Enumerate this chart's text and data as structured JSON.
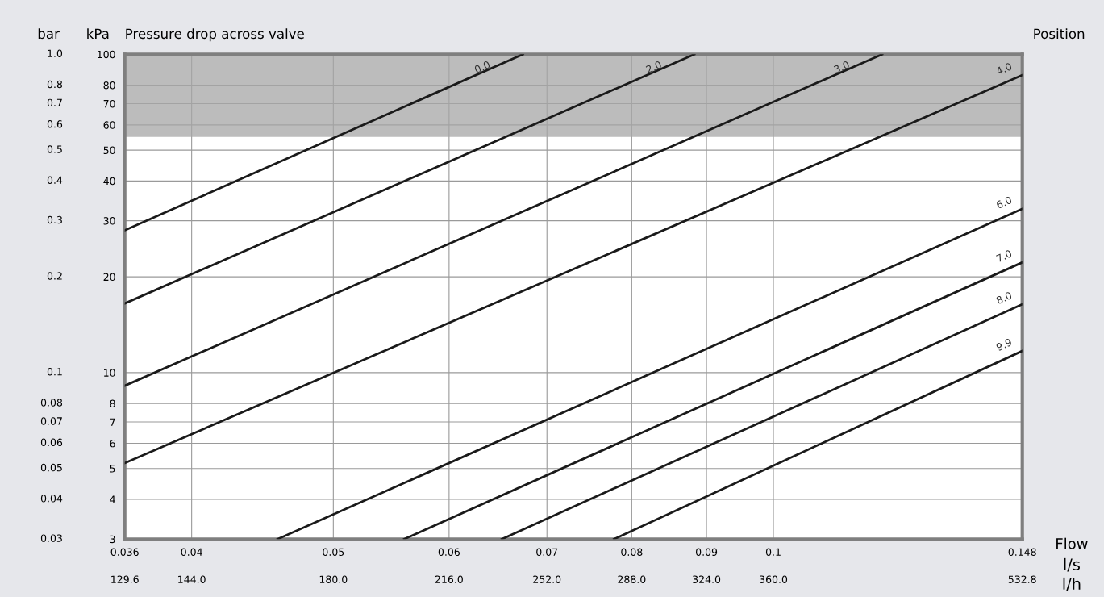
{
  "chart_data": {
    "type": "line",
    "title": "Pressure drop across valve",
    "ylabel": "kPa",
    "xlabel": "l/s",
    "legend_title": "Position",
    "annotations": [
      "Flow",
      "bar",
      "l/h",
      "129.6",
      "144.0",
      "180.0",
      "216.0",
      "252.0",
      "288.0",
      "324.0",
      "360.0",
      "532.8",
      "0.03",
      "0.04",
      "0.05",
      "0.06",
      "0.07",
      "0.08",
      "0.1",
      "0.2",
      "0.3",
      "0.4",
      "0.5",
      "0.6",
      "0.7",
      "0.8",
      "1.0"
    ],
    "log": "xy",
    "grid": true,
    "legend": false,
    "marker": "none",
    "line_style": "solid",
    "xlim": [
      0.036,
      0.148
    ],
    "xticks": [
      0.036,
      0.04,
      0.05,
      0.06,
      0.07,
      0.08,
      0.09,
      0.1,
      0.148
    ],
    "ylim": [
      3,
      100
    ],
    "yticks": [
      3,
      4,
      5,
      6,
      7,
      8,
      10,
      20,
      30,
      40,
      50,
      60,
      70,
      80,
      100
    ],
    "bands": [
      {
        "axis": "y",
        "from": 55,
        "to": 100,
        "color": "#a6a6a6"
      }
    ],
    "series": [
      {
        "name": "0.0",
        "color": "#1a1a1a",
        "x": [
          0.036,
          0.0674
        ],
        "values": [
          28,
          100
        ]
      },
      {
        "name": "2.0",
        "color": "#1a1a1a",
        "x": [
          0.036,
          0.0883
        ],
        "values": [
          16.5,
          100
        ]
      },
      {
        "name": "3.0",
        "color": "#1a1a1a",
        "x": [
          0.036,
          0.1187
        ],
        "values": [
          9.1,
          100
        ]
      },
      {
        "name": "4.0",
        "color": "#1a1a1a",
        "x": [
          0.036,
          0.148
        ],
        "values": [
          5.2,
          86
        ]
      },
      {
        "name": "6.0",
        "color": "#1a1a1a",
        "x": [
          0.0458,
          0.148
        ],
        "values": [
          3,
          32.7
        ]
      },
      {
        "name": "7.0",
        "color": "#1a1a1a",
        "x": [
          0.0559,
          0.148
        ],
        "values": [
          3,
          22.2
        ]
      },
      {
        "name": "8.0",
        "color": "#1a1a1a",
        "x": [
          0.0652,
          0.148
        ],
        "values": [
          3,
          16.4
        ]
      },
      {
        "name": "9.9",
        "color": "#1a1a1a",
        "x": [
          0.0778,
          0.148
        ],
        "values": [
          3,
          11.7
        ]
      }
    ]
  }
}
